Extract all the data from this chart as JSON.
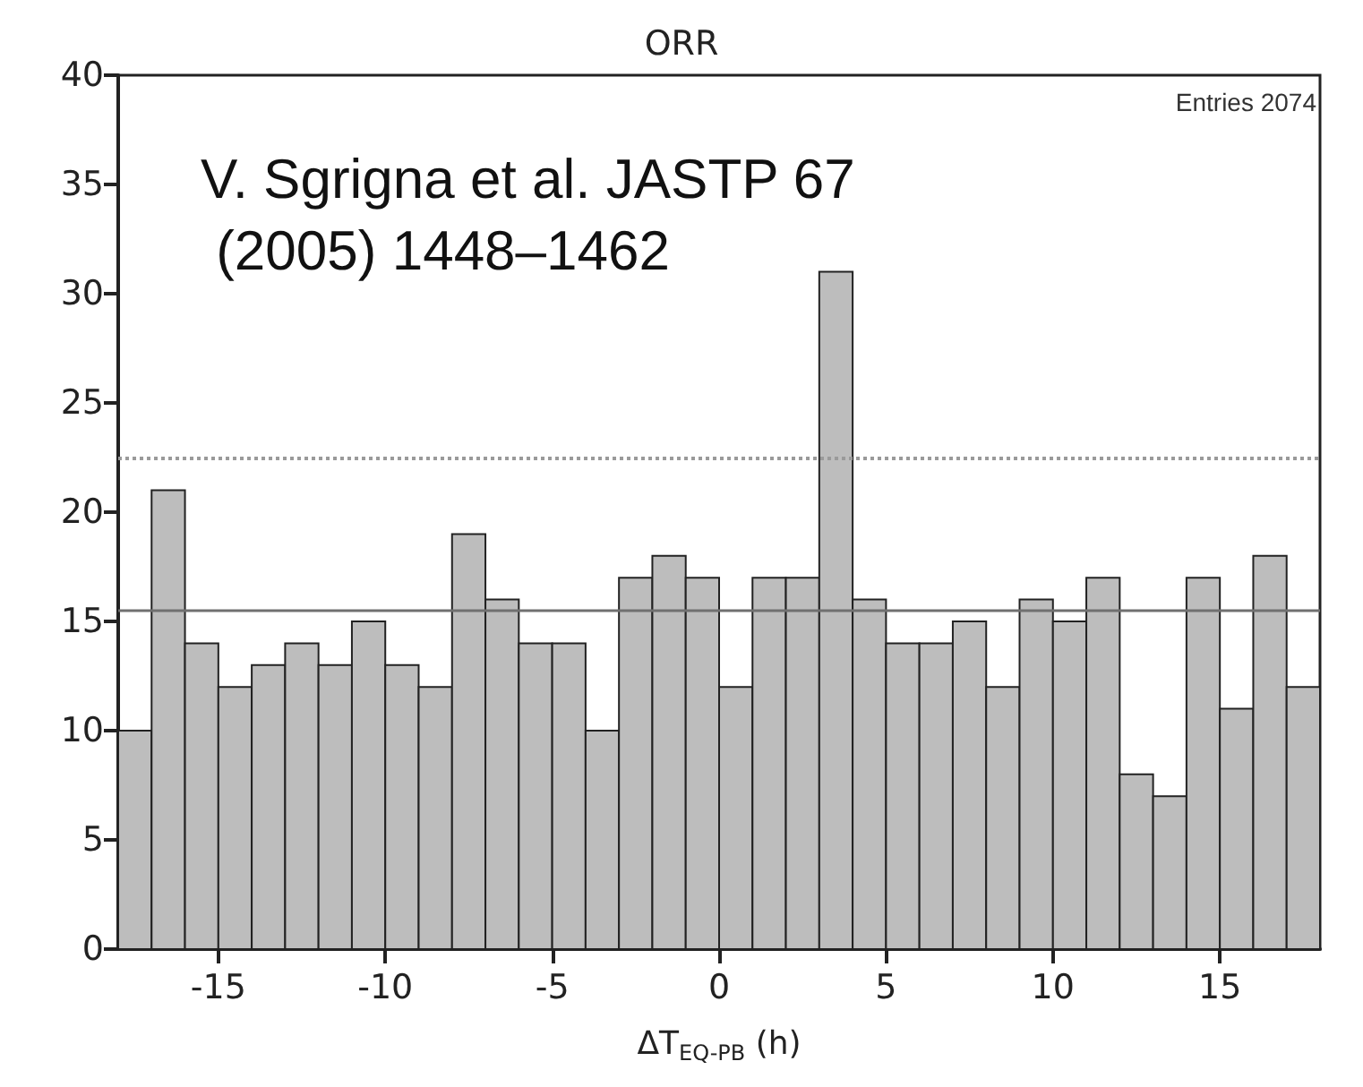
{
  "chart_data": {
    "type": "histogram",
    "title": "ORR",
    "xlabel": "ΔT$_{EQ-PB}$ (h)",
    "bins": [
      -18,
      -17,
      -16,
      -15,
      -14,
      -13,
      -12,
      -11,
      -10,
      -9,
      -8,
      -7,
      -6,
      -5,
      -4,
      -3,
      -2,
      -1,
      0,
      1,
      2,
      3,
      4,
      5,
      6,
      7,
      8,
      9,
      10,
      11,
      12,
      13,
      14,
      15,
      16,
      17,
      18
    ],
    "values": [
      10,
      21,
      14,
      12,
      13,
      14,
      13,
      15,
      13,
      12,
      19,
      16,
      14,
      14,
      10,
      17,
      18,
      17,
      12,
      17,
      17,
      31,
      16,
      14,
      14,
      15,
      12,
      16,
      15,
      17,
      8,
      7,
      17,
      11,
      18,
      12
    ],
    "color": "#bdbdbd",
    "xlim": [
      -18,
      18
    ],
    "xticks": [
      -15,
      -10,
      -5,
      0,
      5,
      10,
      15
    ],
    "ylim": [
      0,
      40
    ],
    "yticks": [
      0,
      5,
      10,
      15,
      20,
      25,
      30,
      35,
      40
    ],
    "ref_lines": [
      {
        "axis": "y",
        "value": 15.5,
        "label": null,
        "color": "#707070",
        "line_style": "solid"
      },
      {
        "axis": "y",
        "value": 22.5,
        "label": null,
        "color": "#9a9a9a",
        "line_style": "dotted"
      }
    ],
    "annotations": [
      "Entries 2074",
      "V. Sgrigna et al. JASTP 67\n (2005) 1448–1462"
    ],
    "tick_labels": "xy"
  }
}
